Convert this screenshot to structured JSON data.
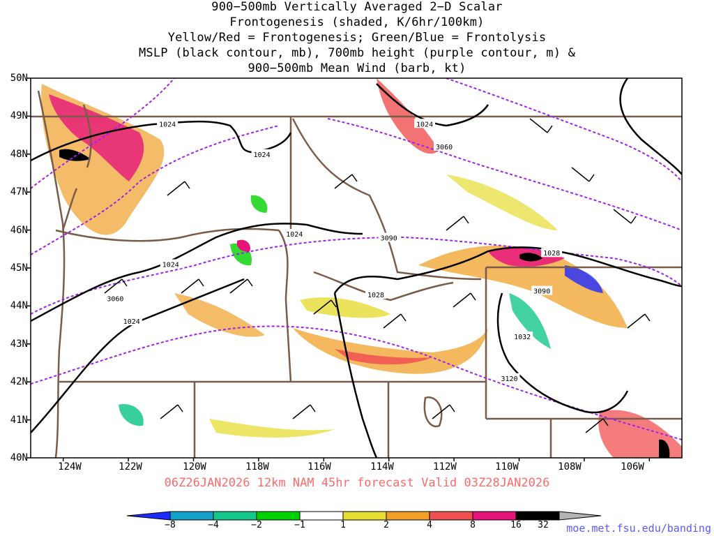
{
  "title_lines": [
    "900−500mb Vertically Averaged 2−D Scalar",
    "Frontogenesis (shaded, K/6hr/100km)",
    "Yellow/Red = Frontogenesis;  Green/Blue = Frontolysis",
    "MSLP (black contour, mb), 700mb height (purple contour, m) &",
    "900−500mb Mean Wind (barb, kt)"
  ],
  "latitude_labels": [
    "50N",
    "49N",
    "48N",
    "47N",
    "46N",
    "45N",
    "44N",
    "43N",
    "42N",
    "41N",
    "40N"
  ],
  "longitude_labels": [
    "124W",
    "122W",
    "120W",
    "118W",
    "116W",
    "114W",
    "112W",
    "110W",
    "108W",
    "106W"
  ],
  "valid_line": "06Z26JAN2026 12km NAM 45hr forecast Valid 03Z28JAN2026",
  "credit": "moe.met.fsu.edu/banding",
  "colorbar": {
    "labels": [
      "−8",
      "−4",
      "−2",
      "−1",
      "1",
      "2",
      "4",
      "8",
      "16",
      "32"
    ],
    "colors": [
      "#1e2bff",
      "#14a0c8",
      "#14c88c",
      "#00d200",
      "#ffffff",
      "#e6dc32",
      "#f0a028",
      "#f05050",
      "#e6147a",
      "#000000",
      "#b4b4b4"
    ]
  },
  "map": {
    "extent": {
      "lon_min": -125,
      "lon_max": -105,
      "lat_min": 40,
      "lat_max": 50
    },
    "mslp_labels": [
      {
        "text": "1024",
        "lon": -120.8,
        "lat": 48.8
      },
      {
        "text": "1024",
        "lon": -117.9,
        "lat": 48.0
      },
      {
        "text": "1024",
        "lon": -112.9,
        "lat": 48.8
      },
      {
        "text": "1024",
        "lon": -116.9,
        "lat": 45.9
      },
      {
        "text": "1024",
        "lon": -120.7,
        "lat": 45.1
      },
      {
        "text": "1024",
        "lon": -121.9,
        "lat": 43.6
      },
      {
        "text": "1028",
        "lon": -114.4,
        "lat": 44.3
      },
      {
        "text": "1028",
        "lon": -109.0,
        "lat": 45.4
      },
      {
        "text": "1032",
        "lon": -109.9,
        "lat": 43.2
      }
    ],
    "height_labels": [
      {
        "text": "3060",
        "lon": -112.3,
        "lat": 48.2
      },
      {
        "text": "3060",
        "lon": -122.4,
        "lat": 44.2
      },
      {
        "text": "3090",
        "lon": -114.0,
        "lat": 45.8
      },
      {
        "text": "3090",
        "lon": -109.3,
        "lat": 44.4
      },
      {
        "text": "3120",
        "lon": -110.3,
        "lat": 42.1
      }
    ]
  }
}
